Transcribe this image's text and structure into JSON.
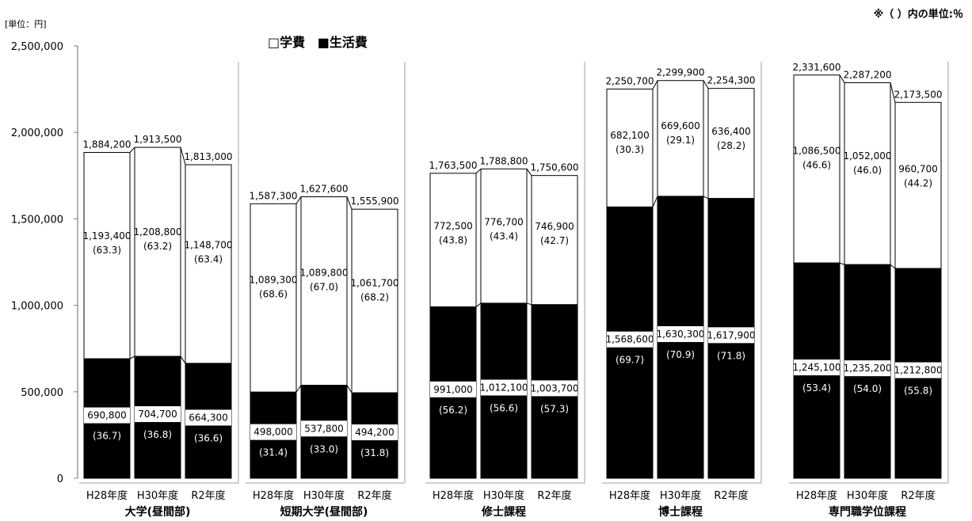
{
  "chart_data": {
    "type": "bar",
    "stacked": true,
    "unit_label": "[単位：円]",
    "note": "※（ ）内の単位:％",
    "legend": {
      "tuition": "□学費",
      "living": "■生活費",
      "placement": "top"
    },
    "y_ticks": [
      "0",
      "500,000",
      "1,000,000",
      "1,500,000",
      "2,000,000",
      "2,500,000"
    ],
    "ylim": [
      0,
      2500000
    ],
    "series": [
      {
        "key": "living",
        "name": "生活費",
        "color": "#000000"
      },
      {
        "key": "tuition",
        "name": "学費",
        "color": "#ffffff"
      }
    ],
    "groups": [
      {
        "name": "大学(昼間部)",
        "bars": [
          {
            "year": "H28年度",
            "total": 1884200,
            "total_label": "1,884,200",
            "tuition": 1193400,
            "tuition_label": "1,193,400",
            "tuition_pct": "(63.3)",
            "living": 690800,
            "living_label": "690,800",
            "living_pct": "(36.7)"
          },
          {
            "year": "H30年度",
            "total": 1913500,
            "total_label": "1,913,500",
            "tuition": 1208800,
            "tuition_label": "1,208,800",
            "tuition_pct": "(63.2)",
            "living": 704700,
            "living_label": "704,700",
            "living_pct": "(36.8)"
          },
          {
            "year": "R2年度",
            "total": 1813000,
            "total_label": "1,813,000",
            "tuition": 1148700,
            "tuition_label": "1,148,700",
            "tuition_pct": "(63.4)",
            "living": 664300,
            "living_label": "664,300",
            "living_pct": "(36.6)"
          }
        ]
      },
      {
        "name": "短期大学(昼間部)",
        "bars": [
          {
            "year": "H28年度",
            "total": 1587300,
            "total_label": "1,587,300",
            "tuition": 1089300,
            "tuition_label": "1,089,300",
            "tuition_pct": "(68.6)",
            "living": 498000,
            "living_label": "498,000",
            "living_pct": "(31.4)"
          },
          {
            "year": "H30年度",
            "total": 1627600,
            "total_label": "1,627,600",
            "tuition": 1089800,
            "tuition_label": "1,089,800",
            "tuition_pct": "(67.0)",
            "living": 537800,
            "living_label": "537,800",
            "living_pct": "(33.0)"
          },
          {
            "year": "R2年度",
            "total": 1555900,
            "total_label": "1,555,900",
            "tuition": 1061700,
            "tuition_label": "1,061,700",
            "tuition_pct": "(68.2)",
            "living": 494200,
            "living_label": "494,200",
            "living_pct": "(31.8)"
          }
        ]
      },
      {
        "name": "修士課程",
        "bars": [
          {
            "year": "H28年度",
            "total": 1763500,
            "total_label": "1,763,500",
            "tuition": 772500,
            "tuition_label": "772,500",
            "tuition_pct": "(43.8)",
            "living": 991000,
            "living_label": "991,000",
            "living_pct": "(56.2)"
          },
          {
            "year": "H30年度",
            "total": 1788800,
            "total_label": "1,788,800",
            "tuition": 776700,
            "tuition_label": "776,700",
            "tuition_pct": "(43.4)",
            "living": 1012100,
            "living_label": "1,012,100",
            "living_pct": "(56.6)"
          },
          {
            "year": "R2年度",
            "total": 1750600,
            "total_label": "1,750,600",
            "tuition": 746900,
            "tuition_label": "746,900",
            "tuition_pct": "(42.7)",
            "living": 1003700,
            "living_label": "1,003,700",
            "living_pct": "(57.3)"
          }
        ]
      },
      {
        "name": "博士課程",
        "bars": [
          {
            "year": "H28年度",
            "total": 2250700,
            "total_label": "2,250,700",
            "tuition": 682100,
            "tuition_label": "682,100",
            "tuition_pct": "(30.3)",
            "living": 1568600,
            "living_label": "1,568,600",
            "living_pct": "(69.7)"
          },
          {
            "year": "H30年度",
            "total": 2299900,
            "total_label": "2,299,900",
            "tuition": 669600,
            "tuition_label": "669,600",
            "tuition_pct": "(29.1)",
            "living": 1630300,
            "living_label": "1,630,300",
            "living_pct": "(70.9)"
          },
          {
            "year": "R2年度",
            "total": 2254300,
            "total_label": "2,254,300",
            "tuition": 636400,
            "tuition_label": "636,400",
            "tuition_pct": "(28.2)",
            "living": 1617900,
            "living_label": "1,617,900",
            "living_pct": "(71.8)"
          }
        ]
      },
      {
        "name": "専門職学位課程",
        "bars": [
          {
            "year": "H28年度",
            "total": 2331600,
            "total_label": "2,331,600",
            "tuition": 1086500,
            "tuition_label": "1,086,500",
            "tuition_pct": "(46.6)",
            "living": 1245100,
            "living_label": "1,245,100",
            "living_pct": "(53.4)"
          },
          {
            "year": "H30年度",
            "total": 2287200,
            "total_label": "2,287,200",
            "tuition": 1052000,
            "tuition_label": "1,052,000",
            "tuition_pct": "(46.0)",
            "living": 1235200,
            "living_label": "1,235,200",
            "living_pct": "(54.0)"
          },
          {
            "year": "R2年度",
            "total": 2173500,
            "total_label": "2,173,500",
            "tuition": 960700,
            "tuition_label": "960,700",
            "tuition_pct": "(44.2)",
            "living": 1212800,
            "living_label": "1,212,800",
            "living_pct": "(55.8)"
          }
        ]
      }
    ]
  }
}
